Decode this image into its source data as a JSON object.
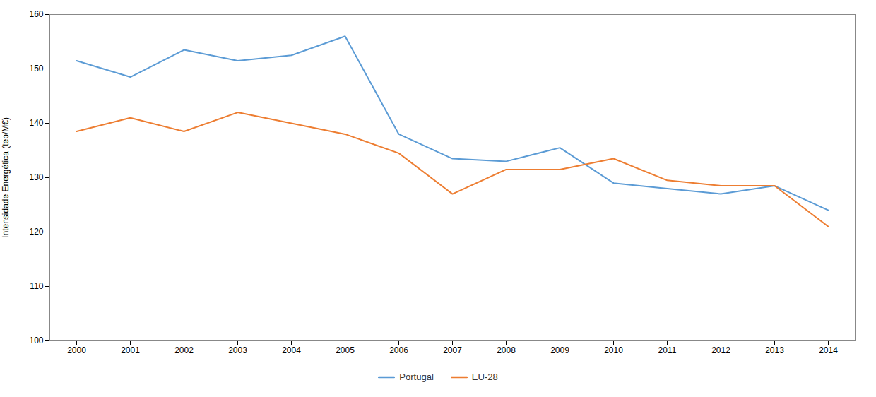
{
  "chart_data": {
    "type": "line",
    "x": [
      2000,
      2001,
      2002,
      2003,
      2004,
      2005,
      2006,
      2007,
      2008,
      2009,
      2010,
      2011,
      2012,
      2013,
      2014
    ],
    "series": [
      {
        "name": "Portugal",
        "color": "#5B9BD5",
        "values": [
          151.5,
          148.5,
          153.5,
          151.5,
          152.5,
          156.0,
          138.0,
          133.5,
          133.0,
          135.5,
          129.0,
          128.0,
          127.0,
          128.5,
          124.0
        ]
      },
      {
        "name": "EU-28",
        "color": "#ED7D31",
        "values": [
          138.5,
          141.0,
          138.5,
          142.0,
          140.0,
          138.0,
          134.5,
          127.0,
          131.5,
          131.5,
          133.5,
          129.5,
          128.5,
          128.5,
          121.0
        ]
      }
    ],
    "ylabel": "Intensidade Energética (tep/M€)",
    "xlim": [
      1999.5,
      2014.5
    ],
    "xticks": [
      2000,
      2001,
      2002,
      2003,
      2004,
      2005,
      2006,
      2007,
      2008,
      2009,
      2010,
      2011,
      2012,
      2013,
      2014
    ],
    "ylim": [
      100,
      160
    ],
    "yticks": [
      100,
      110,
      120,
      130,
      140,
      150,
      160
    ],
    "grid": false,
    "legend": "bottom"
  }
}
